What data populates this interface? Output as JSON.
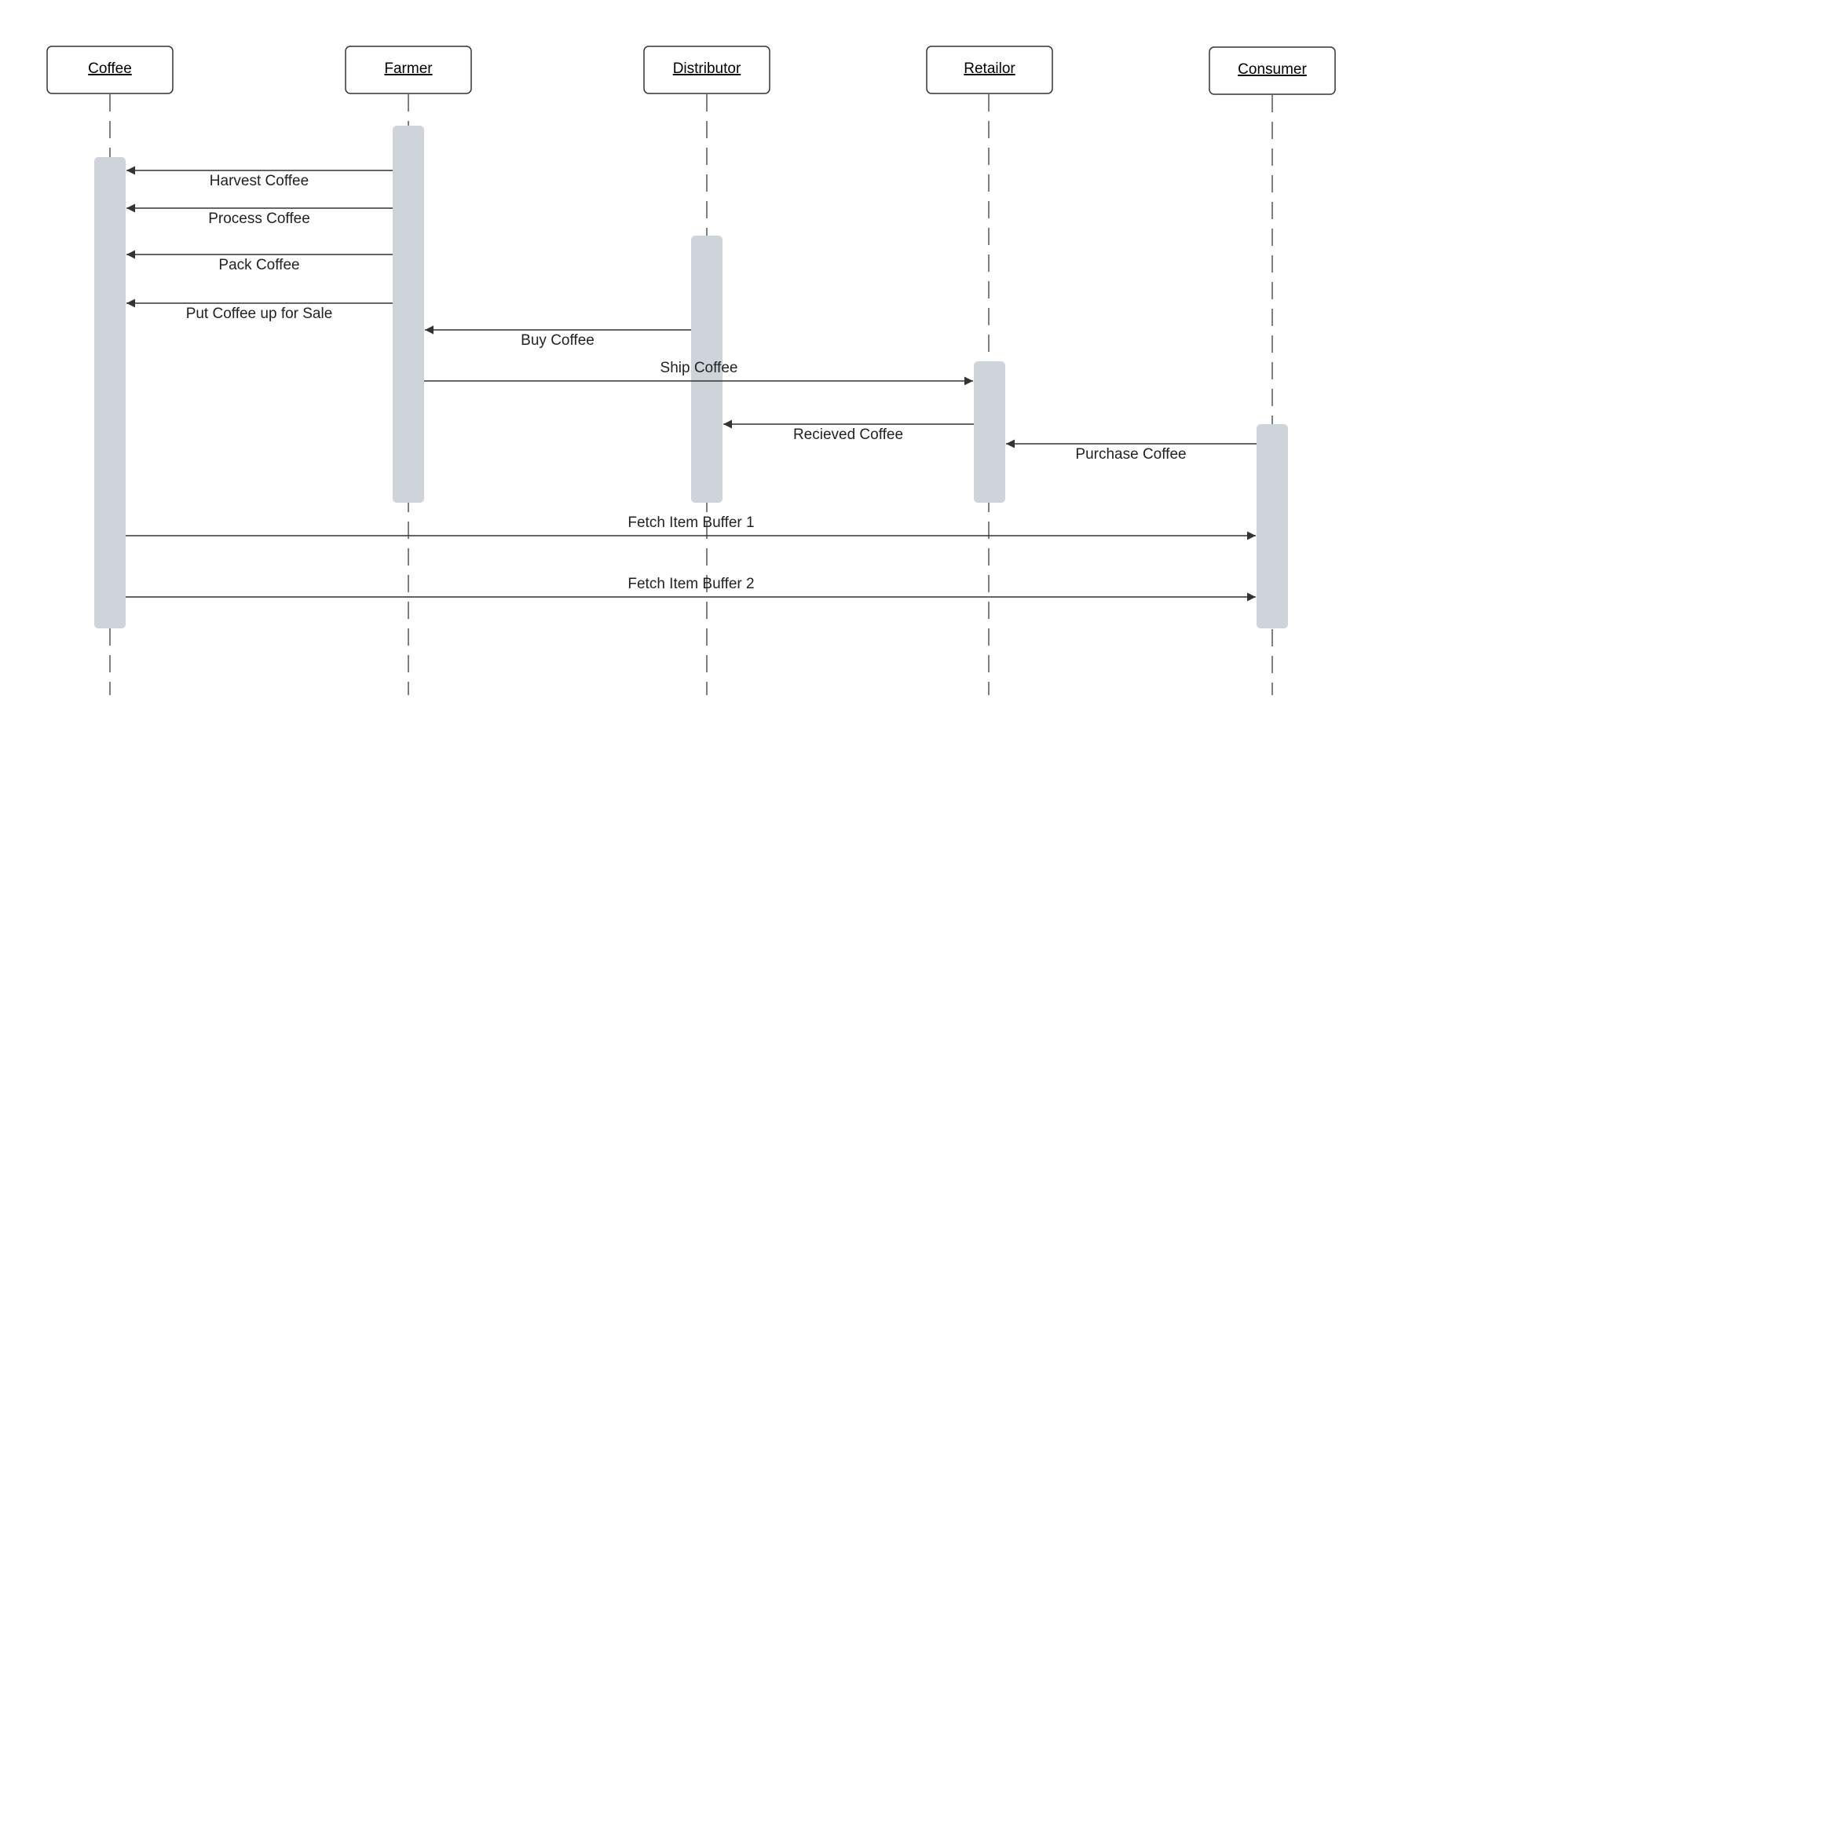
{
  "diagram": {
    "type": "sequence",
    "colors": {
      "activation_fill": "#cfd4db",
      "line": "#333333",
      "box_border": "#333333",
      "text": "#222222",
      "background": "#ffffff"
    },
    "participants": [
      {
        "id": "coffee",
        "label": "Coffee"
      },
      {
        "id": "farmer",
        "label": "Farmer"
      },
      {
        "id": "distributor",
        "label": "Distributor"
      },
      {
        "id": "retailor",
        "label": "Retailor"
      },
      {
        "id": "consumer",
        "label": "Consumer"
      }
    ],
    "messages": [
      {
        "from": "farmer",
        "to": "coffee",
        "label": "Harvest Coffee"
      },
      {
        "from": "farmer",
        "to": "coffee",
        "label": "Process Coffee"
      },
      {
        "from": "farmer",
        "to": "coffee",
        "label": "Pack Coffee"
      },
      {
        "from": "farmer",
        "to": "coffee",
        "label": "Put Coffee up for Sale"
      },
      {
        "from": "distributor",
        "to": "farmer",
        "label": "Buy Coffee"
      },
      {
        "from": "farmer",
        "to": "retailor",
        "label": "Ship Coffee"
      },
      {
        "from": "retailor",
        "to": "distributor",
        "label": "Recieved Coffee"
      },
      {
        "from": "consumer",
        "to": "retailor",
        "label": "Purchase Coffee"
      },
      {
        "from": "coffee",
        "to": "consumer",
        "label": "Fetch Item Buffer 1"
      },
      {
        "from": "coffee",
        "to": "consumer",
        "label": "Fetch Item Buffer 2"
      }
    ]
  }
}
